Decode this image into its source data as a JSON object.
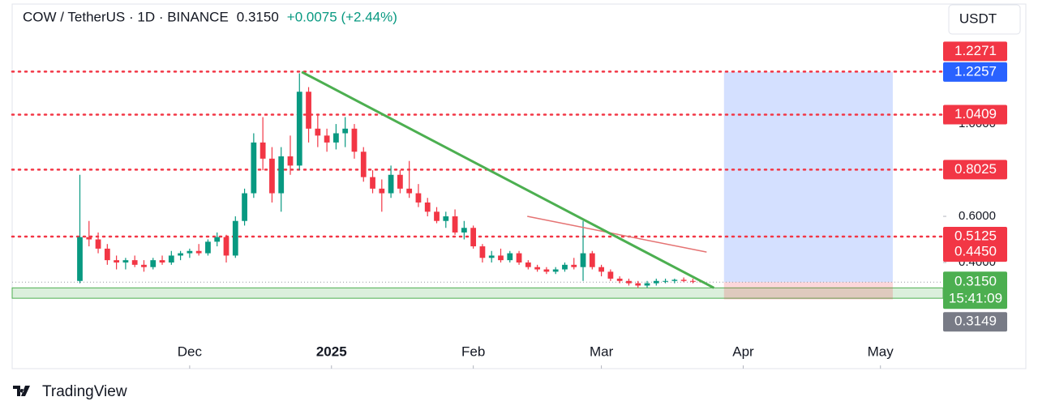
{
  "header": {
    "symbol": "COW / TetherUS · 1D · BINANCE",
    "price": "0.3150",
    "change": "+0.0075 (+2.44%)",
    "currency": "USDT"
  },
  "footer": {
    "brand": "TradingView"
  },
  "chart_data": {
    "type": "candlestick",
    "x": [
      -24,
      -22,
      -20,
      -18,
      -16,
      -14,
      -12,
      -10,
      -8,
      -6,
      -4,
      -2,
      0,
      2,
      4,
      6,
      8,
      10,
      12,
      14,
      16,
      18,
      20,
      22,
      24,
      26,
      28,
      30,
      32,
      34,
      36,
      38,
      40,
      42,
      44,
      46,
      48,
      50,
      52,
      54,
      56,
      58,
      60,
      62,
      64,
      66,
      68,
      70,
      72,
      74,
      76,
      78,
      80,
      82,
      84,
      86,
      88,
      90,
      92,
      94,
      96,
      98,
      100,
      102,
      104,
      106,
      108,
      110,
      112
    ],
    "ohlc": [
      [
        0.32,
        0.78,
        0.31,
        0.51
      ],
      [
        0.51,
        0.58,
        0.47,
        0.5
      ],
      [
        0.5,
        0.53,
        0.44,
        0.46
      ],
      [
        0.46,
        0.48,
        0.39,
        0.41
      ],
      [
        0.41,
        0.43,
        0.37,
        0.4
      ],
      [
        0.4,
        0.42,
        0.37,
        0.41
      ],
      [
        0.41,
        0.43,
        0.38,
        0.39
      ],
      [
        0.39,
        0.41,
        0.36,
        0.38
      ],
      [
        0.38,
        0.42,
        0.37,
        0.41
      ],
      [
        0.41,
        0.43,
        0.39,
        0.4
      ],
      [
        0.4,
        0.45,
        0.39,
        0.43
      ],
      [
        0.43,
        0.45,
        0.41,
        0.44
      ],
      [
        0.44,
        0.46,
        0.42,
        0.45
      ],
      [
        0.45,
        0.48,
        0.43,
        0.44
      ],
      [
        0.44,
        0.5,
        0.43,
        0.49
      ],
      [
        0.49,
        0.53,
        0.47,
        0.51
      ],
      [
        0.51,
        0.52,
        0.4,
        0.43
      ],
      [
        0.43,
        0.6,
        0.42,
        0.58
      ],
      [
        0.58,
        0.72,
        0.56,
        0.7
      ],
      [
        0.7,
        0.96,
        0.68,
        0.92
      ],
      [
        0.92,
        1.03,
        0.8,
        0.85
      ],
      [
        0.85,
        0.9,
        0.66,
        0.7
      ],
      [
        0.7,
        0.9,
        0.62,
        0.86
      ],
      [
        0.86,
        0.95,
        0.78,
        0.82
      ],
      [
        0.82,
        1.22,
        0.8,
        1.14
      ],
      [
        1.14,
        1.16,
        0.92,
        0.98
      ],
      [
        0.98,
        1.04,
        0.9,
        0.95
      ],
      [
        0.95,
        0.98,
        0.88,
        0.92
      ],
      [
        0.92,
        1.0,
        0.89,
        0.96
      ],
      [
        0.96,
        1.03,
        0.9,
        0.98
      ],
      [
        0.98,
        1.0,
        0.85,
        0.88
      ],
      [
        0.88,
        0.9,
        0.75,
        0.77
      ],
      [
        0.77,
        0.8,
        0.7,
        0.72
      ],
      [
        0.72,
        0.76,
        0.62,
        0.7
      ],
      [
        0.7,
        0.82,
        0.68,
        0.78
      ],
      [
        0.78,
        0.8,
        0.7,
        0.72
      ],
      [
        0.72,
        0.84,
        0.68,
        0.7
      ],
      [
        0.7,
        0.74,
        0.64,
        0.66
      ],
      [
        0.66,
        0.68,
        0.6,
        0.62
      ],
      [
        0.62,
        0.64,
        0.57,
        0.58
      ],
      [
        0.58,
        0.62,
        0.55,
        0.6
      ],
      [
        0.6,
        0.63,
        0.52,
        0.53
      ],
      [
        0.53,
        0.58,
        0.5,
        0.55
      ],
      [
        0.55,
        0.56,
        0.46,
        0.47
      ],
      [
        0.47,
        0.48,
        0.4,
        0.42
      ],
      [
        0.42,
        0.45,
        0.4,
        0.43
      ],
      [
        0.43,
        0.46,
        0.4,
        0.41
      ],
      [
        0.41,
        0.45,
        0.4,
        0.44
      ],
      [
        0.44,
        0.45,
        0.39,
        0.4
      ],
      [
        0.4,
        0.41,
        0.37,
        0.38
      ],
      [
        0.38,
        0.39,
        0.36,
        0.37
      ],
      [
        0.37,
        0.38,
        0.35,
        0.36
      ],
      [
        0.36,
        0.38,
        0.35,
        0.37
      ],
      [
        0.37,
        0.4,
        0.36,
        0.39
      ],
      [
        0.39,
        0.42,
        0.37,
        0.38
      ],
      [
        0.38,
        0.58,
        0.32,
        0.44
      ],
      [
        0.44,
        0.45,
        0.37,
        0.38
      ],
      [
        0.38,
        0.39,
        0.34,
        0.36
      ],
      [
        0.36,
        0.37,
        0.32,
        0.33
      ],
      [
        0.33,
        0.34,
        0.31,
        0.32
      ],
      [
        0.32,
        0.33,
        0.3,
        0.31
      ],
      [
        0.31,
        0.32,
        0.29,
        0.3
      ],
      [
        0.3,
        0.32,
        0.29,
        0.31
      ],
      [
        0.31,
        0.33,
        0.3,
        0.32
      ],
      [
        0.32,
        0.33,
        0.31,
        0.32
      ],
      [
        0.32,
        0.33,
        0.31,
        0.325
      ],
      [
        0.325,
        0.335,
        0.315,
        0.32
      ],
      [
        0.32,
        0.33,
        0.31,
        0.318
      ],
      [
        0.318,
        0.322,
        0.312,
        0.315
      ]
    ],
    "up_color": "#089981",
    "down_color": "#f23645",
    "xlim": [
      -38.8,
      164.7
    ],
    "xticks": [
      {
        "value": 0,
        "label": "Dec"
      },
      {
        "value": 31,
        "label": "2025"
      },
      {
        "value": 62,
        "label": "Feb"
      },
      {
        "value": 90,
        "label": "Mar"
      },
      {
        "value": 121,
        "label": "Apr"
      },
      {
        "value": 151,
        "label": "May"
      }
    ],
    "ylim": [
      -0.06,
      1.52
    ],
    "yticks": [
      {
        "value": 0.4,
        "label": "0.4000"
      },
      {
        "value": 0.6,
        "label": "0.6000"
      },
      {
        "value": 1.0,
        "label": "1.0000"
      }
    ],
    "levels": [
      {
        "value": 1.2271,
        "label": "1.2271",
        "color": "#f23645",
        "dotted": true
      },
      {
        "value": 1.2257,
        "label": "1.2257",
        "color": "#2962ff",
        "dotted": false
      },
      {
        "value": 1.0409,
        "label": "1.0409",
        "color": "#f23645",
        "dotted": true
      },
      {
        "value": 0.8025,
        "label": "0.8025",
        "color": "#f23645",
        "dotted": true
      },
      {
        "value": 0.5125,
        "label": "0.5125",
        "color": "#f23645",
        "dotted": true
      },
      {
        "value": 0.445,
        "label": "0.4450",
        "color": "#f23645",
        "dotted": false
      },
      {
        "value": 0.315,
        "label": "0.3150",
        "color": "#4caf50",
        "dotted": false,
        "countdown": "15:41:09"
      },
      {
        "value": 0.3149,
        "label": "0.3149",
        "color": "#787b86",
        "dotted": false
      }
    ],
    "trendline": {
      "x": [
        24.5,
        114.6
      ],
      "values": [
        1.2257,
        0.29
      ],
      "color": "#4caf50"
    },
    "ma_line": {
      "x": [
        73.8,
        113
      ],
      "values": [
        0.6,
        0.445
      ],
      "color": "#e57373"
    },
    "support_zone": {
      "values": [
        0.29,
        0.245
      ],
      "color": "#4caf50"
    },
    "position": {
      "x": [
        116.8,
        153.7
      ],
      "entry": 0.315,
      "target": 1.2257,
      "stop": 0.24
    }
  }
}
